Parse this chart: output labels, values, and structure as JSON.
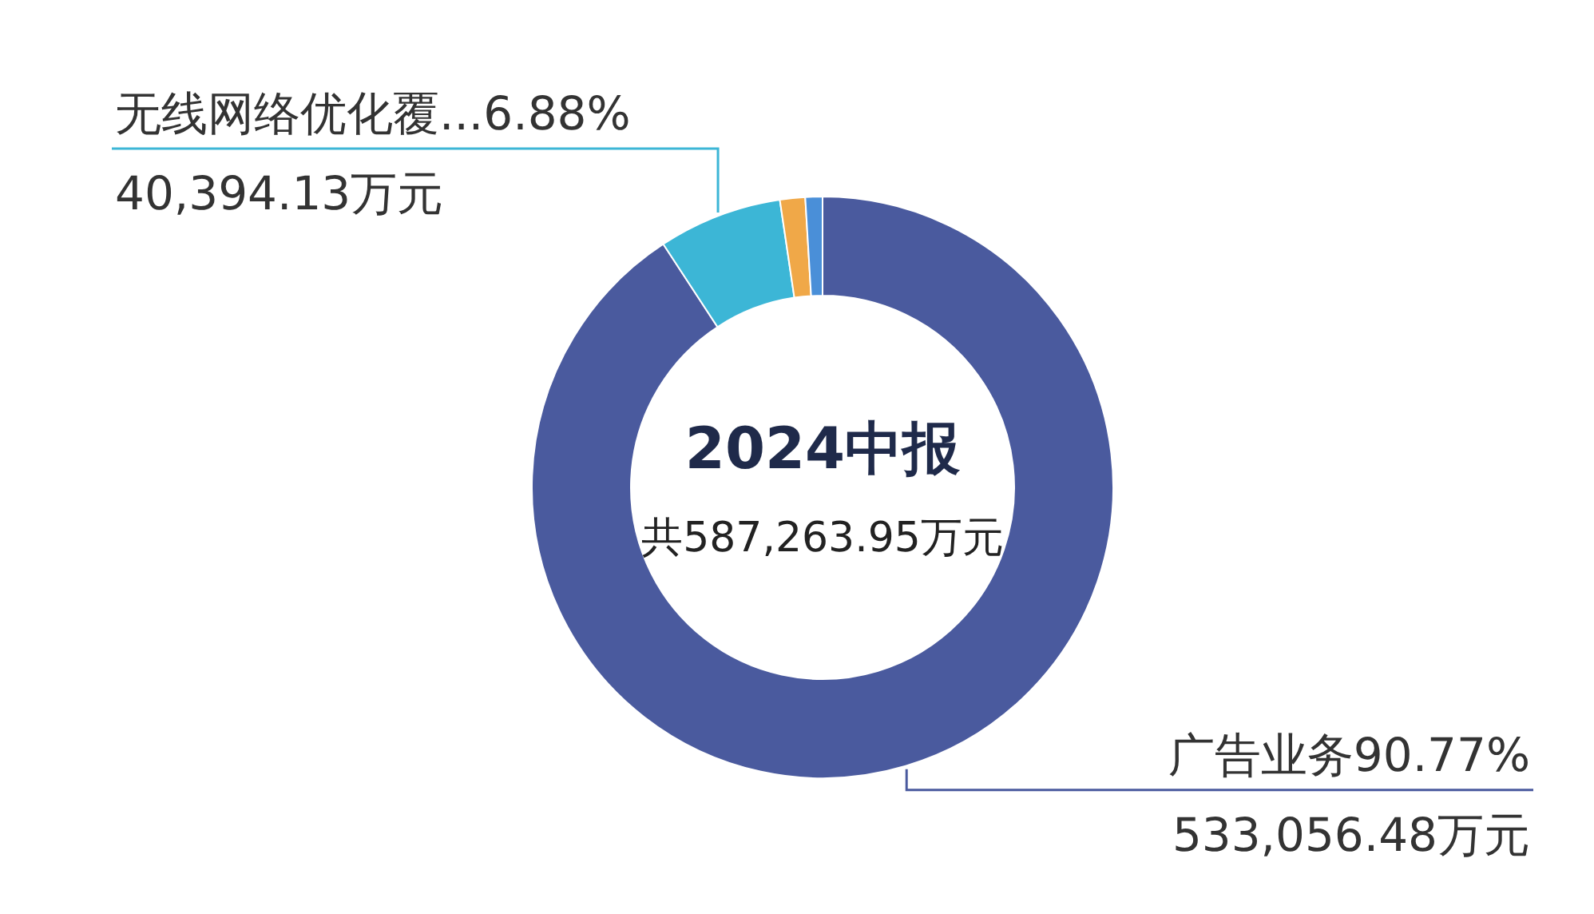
{
  "chart_data": {
    "type": "donut",
    "title": "2024中报",
    "subtitle": "共587,263.95万元",
    "categories": [
      "广告业务",
      "无线网络优化覆...",
      null,
      null
    ],
    "values": [
      90.77,
      6.88,
      1.4,
      0.95
    ],
    "colors": [
      "#4a5a9e",
      "#3cb6d6",
      "#f0a848",
      "#4a8fd8"
    ],
    "value_labels": [
      "90.77%",
      "6.88%",
      null,
      null
    ],
    "annotations": [
      {
        "text": "533,056.48万元",
        "x": "广告业务"
      },
      {
        "text": "40,394.13万元",
        "x": "无线网络优化覆..."
      }
    ]
  }
}
